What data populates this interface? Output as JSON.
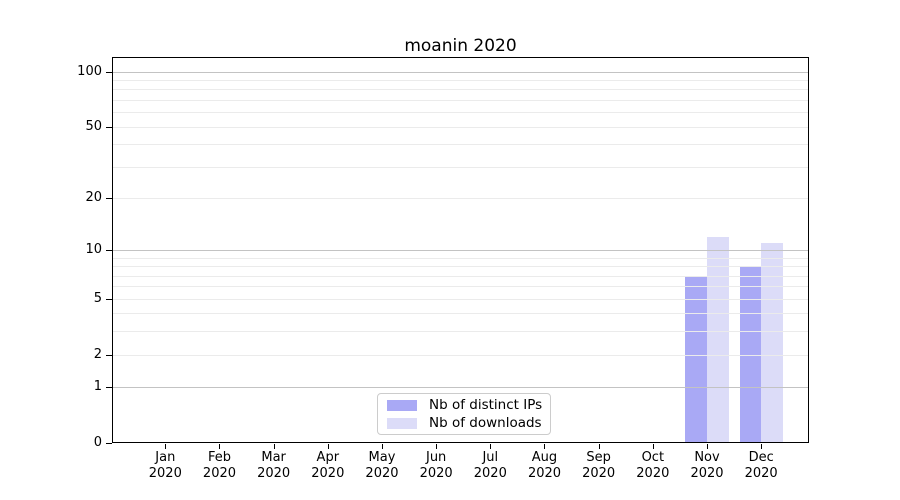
{
  "chart_data": {
    "type": "bar",
    "title": "moanin 2020",
    "x_tick_second_line": "2020",
    "categories": [
      "Jan",
      "Feb",
      "Mar",
      "Apr",
      "May",
      "Jun",
      "Jul",
      "Aug",
      "Sep",
      "Oct",
      "Nov",
      "Dec"
    ],
    "series": [
      {
        "name": "Nb of distinct IPs",
        "color": "#a9a9f5",
        "values": [
          0,
          0,
          0,
          0,
          0,
          0,
          0,
          0,
          0,
          0,
          7,
          8
        ]
      },
      {
        "name": "Nb of downloads",
        "color": "#dcdcf8",
        "values": [
          0,
          0,
          0,
          0,
          0,
          0,
          0,
          0,
          0,
          0,
          12,
          11
        ]
      }
    ],
    "y_scale": "log1p",
    "ylim": [
      0,
      120
    ],
    "y_ticks": [
      0,
      1,
      2,
      5,
      10,
      20,
      50,
      100
    ],
    "y_major_gridlines": [
      1,
      10,
      100
    ],
    "y_minor_gridlines": [
      2,
      3,
      4,
      5,
      6,
      7,
      8,
      9,
      20,
      30,
      40,
      50,
      60,
      70,
      80,
      90
    ],
    "grid": true,
    "grid_above_bars": true,
    "legend": {
      "position": "lower-center",
      "entries": [
        "Nb of distinct IPs",
        "Nb of downloads"
      ]
    },
    "colors": {
      "series_1_bar": "#a9a9f5",
      "series_2_bar": "#dcdcf8",
      "major_grid": "#c3c3c3",
      "minor_grid": "#ebebeb",
      "axis_spine": "#000000",
      "text": "#000000",
      "legend_border": "#cccccc",
      "background": "#ffffff"
    }
  }
}
